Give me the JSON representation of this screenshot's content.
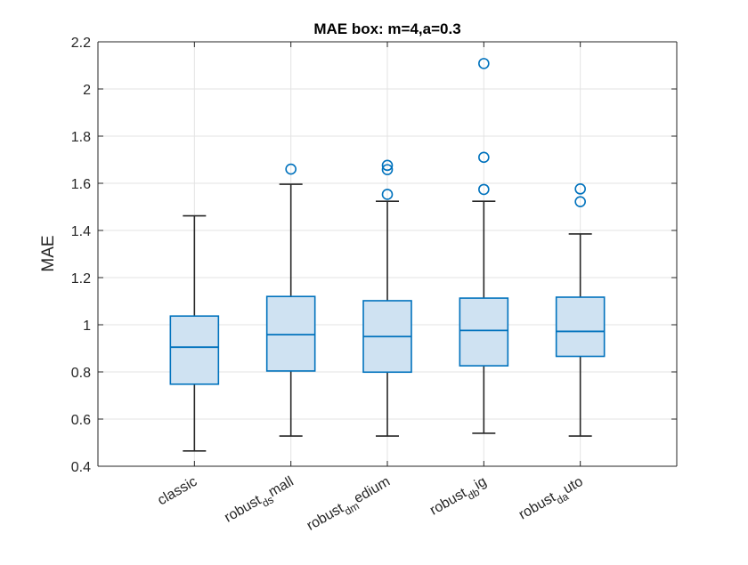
{
  "chart_data": {
    "type": "box",
    "title": "MAE box: m=4,a=0.3",
    "ylabel": "MAE",
    "xlabel": "",
    "ylim": [
      0.4,
      2.2
    ],
    "yticks": [
      0.4,
      0.6,
      0.8,
      1.0,
      1.2,
      1.4,
      1.6,
      1.8,
      2.0,
      2.2
    ],
    "ytick_labels": [
      "0.4",
      "0.6",
      "0.8",
      "1",
      "1.2",
      "1.4",
      "1.6",
      "1.8",
      "2",
      "2.2"
    ],
    "grid": true,
    "categories": [
      {
        "label": "classic",
        "parts": [
          {
            "t": "classic"
          }
        ]
      },
      {
        "label": "robust_ds mall",
        "parts": [
          {
            "t": "robust"
          },
          {
            "t": "ds",
            "sub": true
          },
          {
            "t": "mall"
          }
        ]
      },
      {
        "label": "robust_dm edium",
        "parts": [
          {
            "t": "robust"
          },
          {
            "t": "dm",
            "sub": true
          },
          {
            "t": "edium"
          }
        ]
      },
      {
        "label": "robust_db ig",
        "parts": [
          {
            "t": "robust"
          },
          {
            "t": "db",
            "sub": true
          },
          {
            "t": "ig"
          }
        ]
      },
      {
        "label": "robust_da uto",
        "parts": [
          {
            "t": "robust"
          },
          {
            "t": "da",
            "sub": true
          },
          {
            "t": "uto"
          }
        ]
      }
    ],
    "boxes": [
      {
        "whisker_low": 0.465,
        "q1": 0.748,
        "median": 0.905,
        "q3": 1.037,
        "whisker_high": 1.462,
        "outliers": []
      },
      {
        "whisker_low": 0.528,
        "q1": 0.804,
        "median": 0.958,
        "q3": 1.12,
        "whisker_high": 1.596,
        "outliers": [
          1.66
        ]
      },
      {
        "whisker_low": 0.528,
        "q1": 0.799,
        "median": 0.95,
        "q3": 1.102,
        "whisker_high": 1.524,
        "outliers": [
          1.553,
          1.658,
          1.676
        ]
      },
      {
        "whisker_low": 0.54,
        "q1": 0.826,
        "median": 0.976,
        "q3": 1.113,
        "whisker_high": 1.524,
        "outliers": [
          1.574,
          1.71,
          2.108
        ]
      },
      {
        "whisker_low": 0.528,
        "q1": 0.866,
        "median": 0.972,
        "q3": 1.117,
        "whisker_high": 1.385,
        "outliers": [
          1.522,
          1.576
        ]
      }
    ],
    "colors": {
      "box_fill": "#cfe2f2",
      "box_edge": "#0072bd",
      "whisker": "#262626",
      "outlier": "#0072bd",
      "grid": "#e3e3e3",
      "axis": "#262626"
    }
  }
}
